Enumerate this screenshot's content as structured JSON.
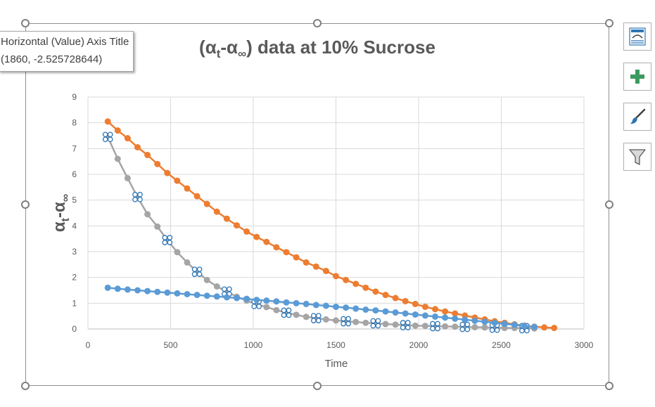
{
  "tooltip": {
    "line1": "Horizontal (Value) Axis Title",
    "line2": "(1860, -2.525728644)"
  },
  "side_buttons": [
    {
      "icon": "chart-layout-icon"
    },
    {
      "icon": "plus-icon"
    },
    {
      "icon": "paintbrush-icon"
    },
    {
      "icon": "filter-icon"
    }
  ],
  "colors": {
    "orange": "#ED7D31",
    "gray": "#A5A5A5",
    "blue": "#5B9BD5",
    "selection": "#2E75B6"
  },
  "chart_data": {
    "type": "scatter",
    "title_parts": [
      "(α",
      "t",
      "-α",
      "∞",
      ") data at 10% Sucrose"
    ],
    "ylabel_parts": [
      "α",
      "t",
      "-α",
      "∞"
    ],
    "xlabel": "Time",
    "xlim": [
      0,
      3000
    ],
    "ylim": [
      0,
      9
    ],
    "x_ticks": [
      "0",
      "500",
      "1000",
      "1500",
      "2000",
      "2500",
      "3000"
    ],
    "y_ticks": [
      "0",
      "1",
      "2",
      "3",
      "4",
      "5",
      "6",
      "7",
      "8",
      "9"
    ],
    "grid": true,
    "series": [
      {
        "color": "orange",
        "x": [
          120,
          180,
          240,
          300,
          360,
          420,
          480,
          540,
          600,
          660,
          720,
          780,
          840,
          900,
          960,
          1020,
          1080,
          1140,
          1200,
          1260,
          1320,
          1380,
          1440,
          1500,
          1560,
          1620,
          1680,
          1740,
          1800,
          1860,
          1920,
          1980,
          2040,
          2100,
          2160,
          2220,
          2280,
          2340,
          2400,
          2460,
          2520,
          2580,
          2640,
          2700,
          2760,
          2820
        ],
        "y": [
          8.05,
          7.7,
          7.4,
          7.05,
          6.75,
          6.4,
          6.05,
          5.75,
          5.45,
          5.15,
          4.85,
          4.55,
          4.28,
          4.02,
          3.78,
          3.57,
          3.38,
          3.17,
          2.98,
          2.78,
          2.58,
          2.42,
          2.25,
          2.05,
          1.9,
          1.75,
          1.6,
          1.45,
          1.32,
          1.2,
          1.08,
          0.97,
          0.86,
          0.77,
          0.68,
          0.6,
          0.52,
          0.44,
          0.37,
          0.3,
          0.24,
          0.18,
          0.13,
          0.09,
          0.06,
          0.04
        ]
      },
      {
        "color": "gray",
        "selected_every": 3,
        "x": [
          120,
          180,
          240,
          300,
          360,
          420,
          480,
          540,
          600,
          660,
          720,
          780,
          840,
          900,
          960,
          1020,
          1080,
          1140,
          1200,
          1260,
          1320,
          1380,
          1440,
          1500,
          1560,
          1620,
          1680,
          1740,
          1800,
          1860,
          1920,
          1980,
          2040,
          2100,
          2160,
          2220,
          2280,
          2340,
          2400,
          2460,
          2520,
          2580,
          2640,
          2700
        ],
        "y": [
          7.45,
          6.6,
          5.85,
          5.12,
          4.45,
          3.97,
          3.45,
          2.98,
          2.58,
          2.22,
          1.9,
          1.65,
          1.45,
          1.25,
          1.1,
          0.97,
          0.85,
          0.73,
          0.63,
          0.55,
          0.47,
          0.42,
          0.37,
          0.33,
          0.3,
          0.27,
          0.24,
          0.22,
          0.19,
          0.17,
          0.15,
          0.13,
          0.12,
          0.11,
          0.1,
          0.09,
          0.08,
          0.07,
          0.06,
          0.05,
          0.04,
          0.04,
          0.03,
          0.02
        ]
      },
      {
        "color": "blue",
        "x": [
          120,
          180,
          240,
          300,
          360,
          420,
          480,
          540,
          600,
          660,
          720,
          780,
          840,
          900,
          960,
          1020,
          1080,
          1140,
          1200,
          1260,
          1320,
          1380,
          1440,
          1500,
          1560,
          1620,
          1680,
          1740,
          1800,
          1860,
          1920,
          1980,
          2040,
          2100,
          2160,
          2220,
          2280,
          2340,
          2400,
          2460,
          2520,
          2580,
          2640,
          2700
        ],
        "y": [
          1.6,
          1.56,
          1.53,
          1.5,
          1.47,
          1.44,
          1.41,
          1.38,
          1.35,
          1.32,
          1.29,
          1.26,
          1.23,
          1.2,
          1.17,
          1.13,
          1.1,
          1.07,
          1.03,
          1.0,
          0.97,
          0.93,
          0.9,
          0.86,
          0.83,
          0.79,
          0.75,
          0.72,
          0.68,
          0.64,
          0.6,
          0.56,
          0.52,
          0.48,
          0.44,
          0.4,
          0.36,
          0.32,
          0.28,
          0.24,
          0.2,
          0.16,
          0.12,
          0.08
        ]
      }
    ]
  }
}
